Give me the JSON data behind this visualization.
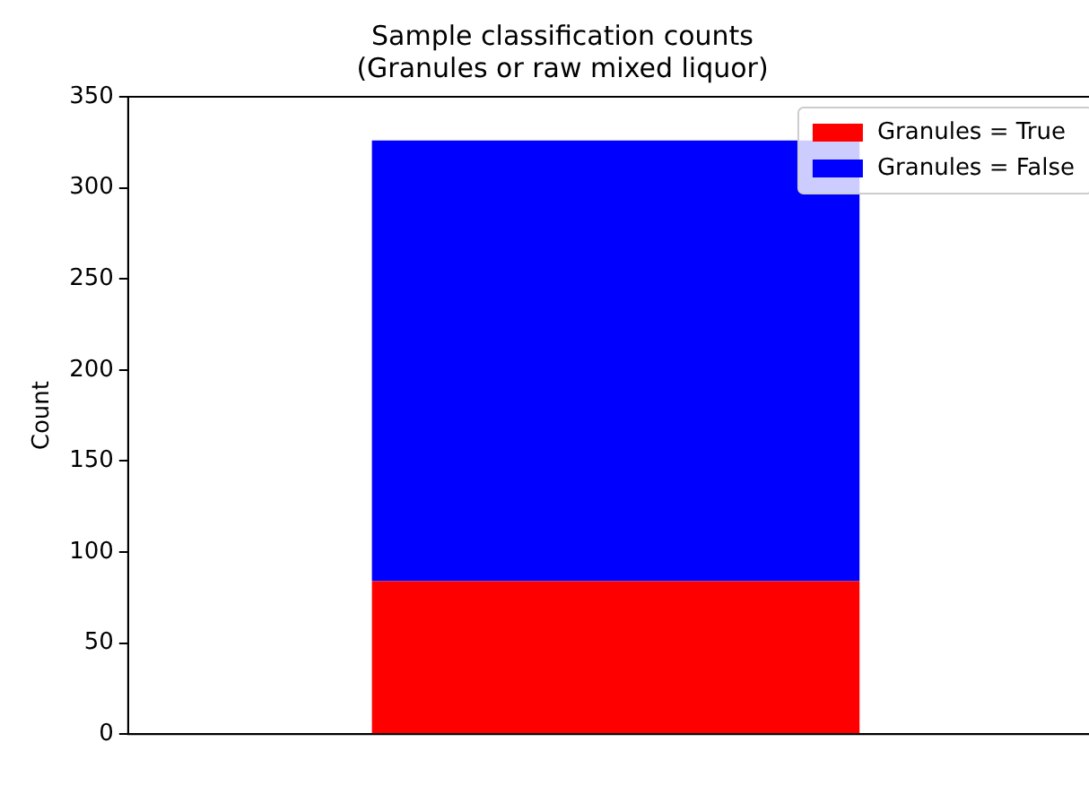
{
  "chart_data": {
    "type": "bar",
    "title": "Sample classification counts",
    "subtitle": "(Granules or raw mixed liquor)",
    "ylabel": "Count",
    "categories": [
      null
    ],
    "stacked": true,
    "series": [
      {
        "name": "Granules = True",
        "color": "#ff0000",
        "values": [
          84
        ]
      },
      {
        "name": "Granules = False",
        "color": "#0000ff",
        "values": [
          242
        ]
      }
    ],
    "ylim": [
      0,
      350
    ],
    "yticks": [
      0,
      50,
      100,
      150,
      200,
      250,
      300,
      350
    ],
    "grid": false,
    "legend": "top right"
  }
}
